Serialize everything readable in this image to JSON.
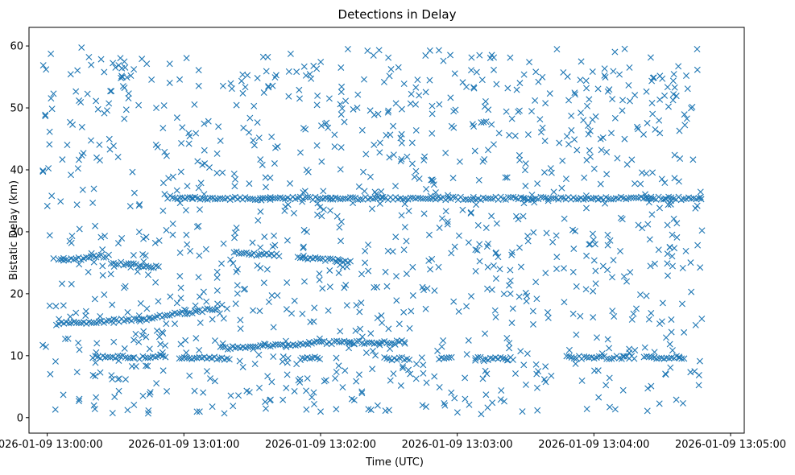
{
  "chart_data": {
    "type": "scatter",
    "title": "Detections in Delay",
    "xlabel": "Time (UTC)",
    "ylabel": "Bistatic Delay (km)",
    "marker": "x",
    "color": "#1f77b4",
    "x_unit": "seconds after 2026-01-09 13:00:00",
    "xlim": [
      "2026-01-09 12:59:52",
      "2026-01-09 13:05:06"
    ],
    "ylim": [
      -2.5,
      63
    ],
    "x_ticks": [
      "2026-01-09 13:00:00",
      "2026-01-09 13:01:00",
      "2026-01-09 13:02:00",
      "2026-01-09 13:03:00",
      "2026-01-09 13:04:00",
      "2026-01-09 13:05:00"
    ],
    "y_ticks": [
      "0",
      "10",
      "20",
      "30",
      "40",
      "50",
      "60"
    ],
    "grid": false,
    "legend": "none",
    "x_extent": [
      "2026-01-09 12:59:59",
      "2026-01-09 13:04:48"
    ],
    "tracks": [
      {
        "x": [
          55,
          288
        ],
        "y": [
          35.4,
          35.4
        ]
      },
      {
        "x": [
          4,
          45
        ],
        "y": [
          15.1,
          16.0
        ]
      },
      {
        "x": [
          45,
          75
        ],
        "y": [
          16.2,
          17.6
        ]
      },
      {
        "x": [
          5,
          28
        ],
        "y": [
          25.3,
          26.2
        ]
      },
      {
        "x": [
          28,
          50
        ],
        "y": [
          25.0,
          24.3
        ]
      },
      {
        "x": [
          82,
          102
        ],
        "y": [
          26.6,
          26.2
        ]
      },
      {
        "x": [
          110,
          134
        ],
        "y": [
          25.9,
          25.1
        ]
      },
      {
        "x": [
          76,
          115
        ],
        "y": [
          11.2,
          12.0
        ]
      },
      {
        "x": [
          115,
          157
        ],
        "y": [
          12.1,
          12.2
        ]
      },
      {
        "x": [
          20,
          38
        ],
        "y": [
          9.8,
          9.8
        ]
      },
      {
        "x": [
          42,
          52
        ],
        "y": [
          9.9,
          9.9
        ]
      },
      {
        "x": [
          58,
          80
        ],
        "y": [
          9.6,
          9.6
        ]
      },
      {
        "x": [
          112,
          120
        ],
        "y": [
          9.6,
          9.6
        ]
      },
      {
        "x": [
          148,
          160
        ],
        "y": [
          9.5,
          9.5
        ]
      },
      {
        "x": [
          172,
          178
        ],
        "y": [
          9.5,
          9.5
        ]
      },
      {
        "x": [
          188,
          205
        ],
        "y": [
          9.5,
          9.5
        ]
      },
      {
        "x": [
          228,
          258
        ],
        "y": [
          9.7,
          9.7
        ]
      },
      {
        "x": [
          262,
          280
        ],
        "y": [
          9.7,
          9.7
        ]
      }
    ],
    "clutter": {
      "count": 1150,
      "x_range": [
        -2,
        288
      ],
      "y_range": [
        0.5,
        60
      ]
    }
  }
}
